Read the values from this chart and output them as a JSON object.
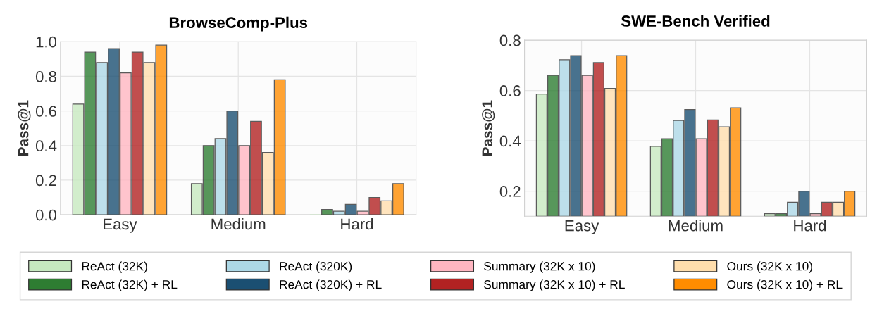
{
  "chart_data": [
    {
      "type": "bar",
      "title": "BrowseComp-Plus",
      "ylabel": "Pass@1",
      "categories": [
        "Easy",
        "Medium",
        "Hard"
      ],
      "ylim": [
        0,
        1.0
      ],
      "yticks": [
        {
          "value": 0,
          "label": "0.0"
        },
        0.2,
        0.4,
        0.6,
        0.8,
        {
          "value": 1,
          "label": "1.0"
        }
      ],
      "grid": true,
      "legend": "bottom",
      "series": [
        {
          "name": "ReAct (32K)",
          "color": "#c7e9c0",
          "values": [
            0.64,
            0.18,
            0.0
          ]
        },
        {
          "name": "ReAct (32K) + RL",
          "color": "#2e7d32",
          "values": [
            0.94,
            0.4,
            0.03
          ]
        },
        {
          "name": "ReAct (320K)",
          "color": "#add8e6",
          "values": [
            0.88,
            0.44,
            0.02
          ]
        },
        {
          "name": "ReAct (320K) + RL",
          "color": "#1b4f72",
          "values": [
            0.96,
            0.6,
            0.06
          ]
        },
        {
          "name": "Summary (32K x 10)",
          "color": "#ffb6c1",
          "values": [
            0.82,
            0.4,
            0.02
          ]
        },
        {
          "name": "Summary (32K x 10) + RL",
          "color": "#b22222",
          "values": [
            0.94,
            0.54,
            0.1
          ]
        },
        {
          "name": "Ours (32K x 10)",
          "color": "#ffdead",
          "values": [
            0.88,
            0.36,
            0.08
          ]
        },
        {
          "name": "Ours (32K x 10) + RL",
          "color": "#ff8c00",
          "values": [
            0.98,
            0.78,
            0.18
          ]
        }
      ]
    },
    {
      "type": "bar",
      "title": "SWE-Bench Verified",
      "ylabel": "Pass@1",
      "categories": [
        "Easy",
        "Medium",
        "Hard"
      ],
      "ylim": [
        0.1,
        0.8
      ],
      "yticks": [
        0.2,
        0.4,
        0.6,
        0.8
      ],
      "grid": true,
      "series": [
        {
          "color": "#c7e9c0",
          "values": [
            0.586,
            0.378,
            0.11
          ]
        },
        {
          "color": "#2e7d32",
          "values": [
            0.66,
            0.408,
            0.11
          ]
        },
        {
          "color": "#add8e6",
          "values": [
            0.722,
            0.481,
            0.156
          ]
        },
        {
          "color": "#1b4f72",
          "values": [
            0.738,
            0.524,
            0.2
          ]
        },
        {
          "color": "#ffb6c1",
          "values": [
            0.66,
            0.408,
            0.11
          ]
        },
        {
          "color": "#b22222",
          "values": [
            0.711,
            0.483,
            0.156
          ]
        },
        {
          "color": "#ffdead",
          "values": [
            0.608,
            0.456,
            0.156
          ]
        },
        {
          "color": "#ff8c00",
          "values": [
            0.738,
            0.531,
            0.2
          ]
        }
      ]
    }
  ]
}
